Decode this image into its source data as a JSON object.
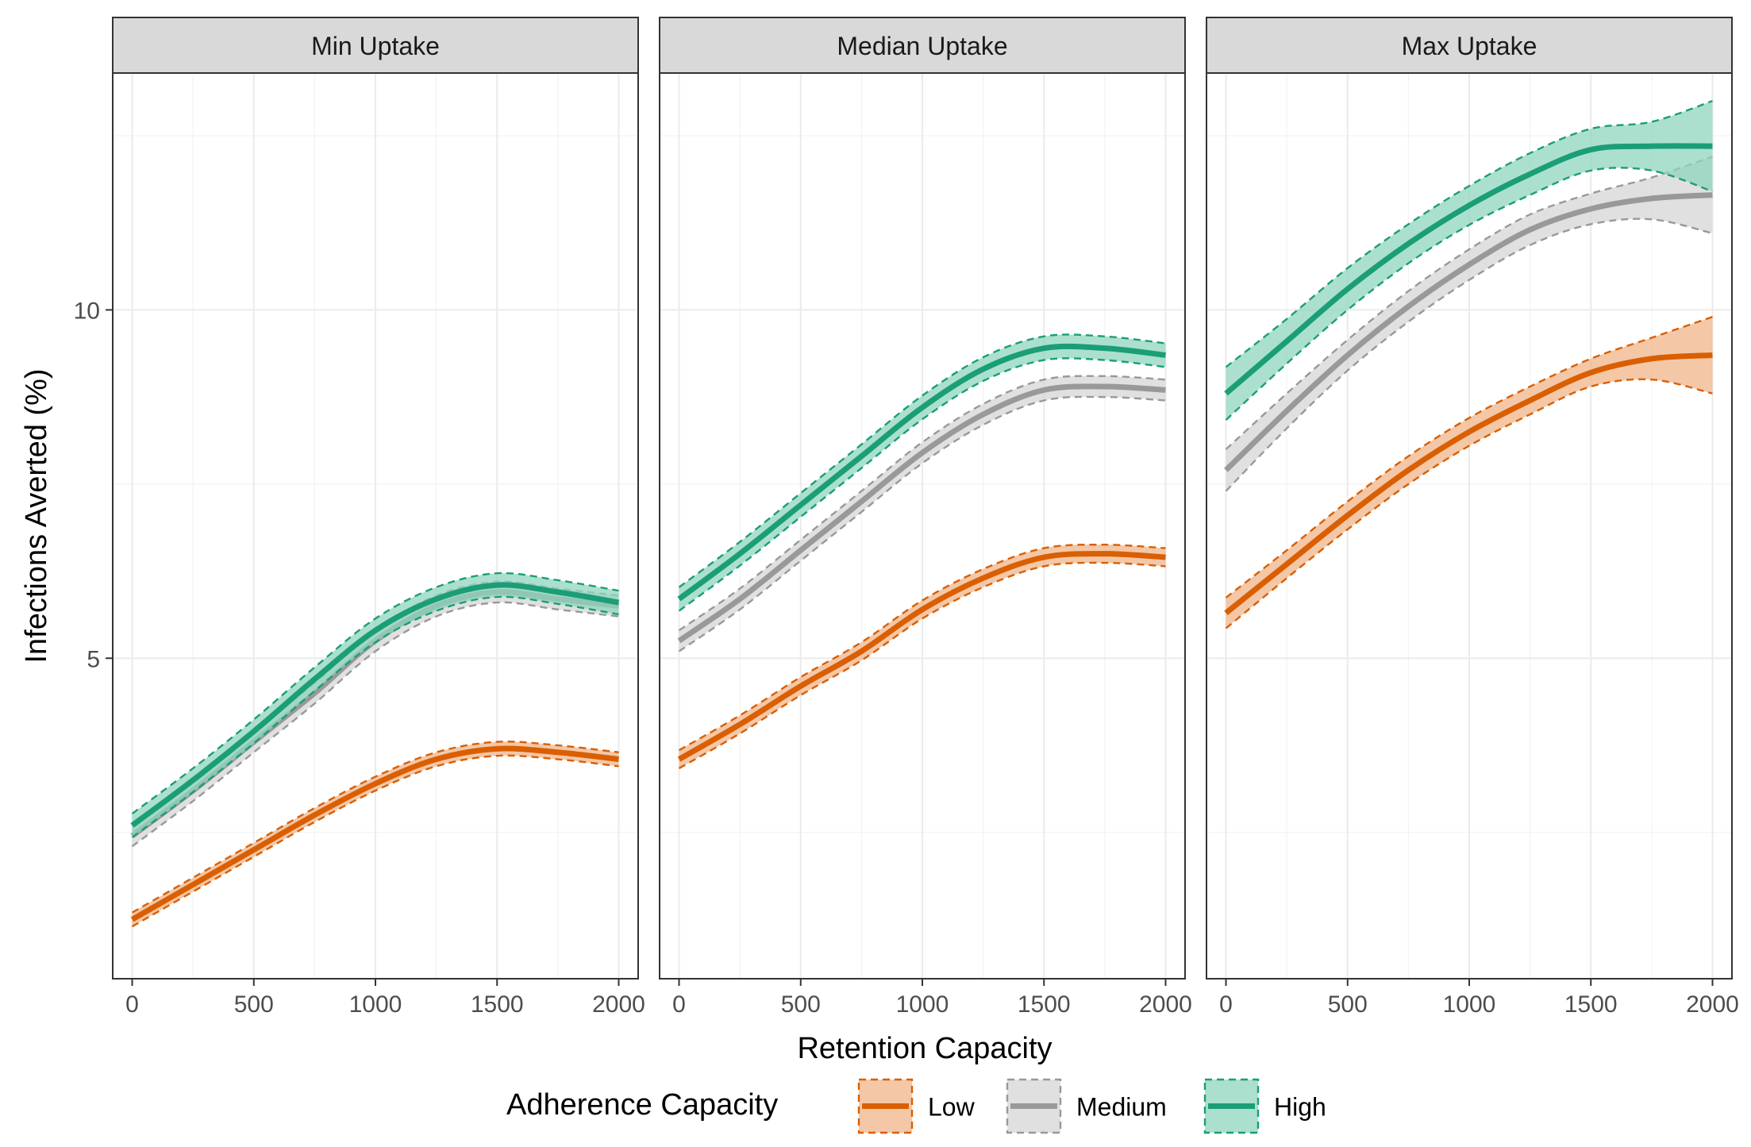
{
  "chart_data": {
    "type": "line",
    "xlabel": "Retention Capacity",
    "ylabel": "Infections Averted (%)",
    "xlim": [
      -80,
      2080
    ],
    "ylim": [
      0.4,
      13.4
    ],
    "x_ticks": [
      0,
      500,
      1000,
      1500,
      2000
    ],
    "x_tick_labels": [
      "0",
      "500",
      "1000",
      "1500",
      "2000"
    ],
    "y_ticks": [
      5,
      10
    ],
    "y_tick_labels": [
      "5",
      "10"
    ],
    "y_minor_ticks": [
      2.5,
      7.5,
      12.5
    ],
    "x_minor_ticks": [
      250,
      750,
      1250,
      1750
    ],
    "grid": true,
    "ribbons": "confidence band with dashed outline",
    "legend": {
      "title": "Adherence Capacity",
      "position": "bottom",
      "entries": [
        {
          "name": "Low",
          "color": "#d95f02",
          "fill": "#f0b48a"
        },
        {
          "name": "Medium",
          "color": "#999999",
          "fill": "#d6d6d6"
        },
        {
          "name": "High",
          "color": "#1b9e77",
          "fill": "#8fd5bd"
        }
      ]
    },
    "x": [
      0,
      250,
      500,
      750,
      1000,
      1250,
      1500,
      1750,
      2000
    ],
    "panels": [
      {
        "title": "Min Uptake",
        "series": [
          {
            "name": "Low",
            "values": [
              1.25,
              1.75,
              2.25,
              2.75,
              3.2,
              3.55,
              3.7,
              3.65,
              3.55
            ],
            "band": 0.1
          },
          {
            "name": "Medium",
            "values": [
              2.45,
              3.1,
              3.8,
              4.5,
              5.25,
              5.75,
              5.95,
              5.85,
              5.75
            ],
            "band": 0.15
          },
          {
            "name": "High",
            "values": [
              2.6,
              3.25,
              3.95,
              4.7,
              5.4,
              5.85,
              6.05,
              5.95,
              5.8
            ],
            "band": 0.17
          }
        ]
      },
      {
        "title": "Median Uptake",
        "series": [
          {
            "name": "Low",
            "values": [
              3.55,
              4.05,
              4.6,
              5.1,
              5.7,
              6.15,
              6.45,
              6.5,
              6.45
            ],
            "band": 0.13
          },
          {
            "name": "Medium",
            "values": [
              5.25,
              5.85,
              6.55,
              7.25,
              7.95,
              8.5,
              8.85,
              8.9,
              8.85
            ],
            "band": 0.15
          },
          {
            "name": "High",
            "values": [
              5.85,
              6.5,
              7.2,
              7.9,
              8.6,
              9.15,
              9.45,
              9.45,
              9.35
            ],
            "band": 0.17
          }
        ]
      },
      {
        "title": "Max Uptake",
        "series": [
          {
            "name": "Low",
            "values": [
              5.65,
              6.35,
              7.05,
              7.7,
              8.25,
              8.7,
              9.1,
              9.3,
              9.35
            ],
            "band": [
              0.22,
              0.2,
              0.2,
              0.2,
              0.2,
              0.2,
              0.2,
              0.3,
              0.55
            ]
          },
          {
            "name": "Medium",
            "values": [
              7.7,
              8.55,
              9.35,
              10.05,
              10.65,
              11.15,
              11.45,
              11.6,
              11.65
            ],
            "band": [
              0.3,
              0.25,
              0.22,
              0.22,
              0.22,
              0.22,
              0.22,
              0.3,
              0.55
            ]
          },
          {
            "name": "High",
            "values": [
              8.8,
              9.55,
              10.3,
              10.95,
              11.5,
              11.95,
              12.3,
              12.35,
              12.35
            ],
            "band": [
              0.38,
              0.32,
              0.3,
              0.28,
              0.28,
              0.3,
              0.3,
              0.35,
              0.65
            ]
          }
        ]
      }
    ]
  }
}
